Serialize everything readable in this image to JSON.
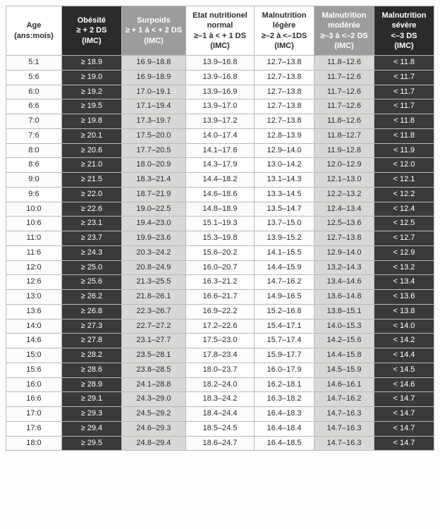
{
  "table": {
    "type": "table",
    "background_color": "#fdfdfb",
    "grid_color": "#b9b9b9",
    "font_family": "Arial",
    "header_fontsize_pt": 8,
    "body_fontsize_pt": 8,
    "columns": [
      {
        "key": "age",
        "label": "Age\n(ans:mois)",
        "header_bg": "#ffffff",
        "header_color": "#2b2b2b",
        "body_bg": "#ffffff",
        "body_color": "#2b2b2b",
        "width_pct": 13,
        "header_class": "hdr-age",
        "body_class": "col-age"
      },
      {
        "key": "ob",
        "label": "Obésité\n≥ + 2 DS\n(IMC)",
        "header_bg": "#2b2b2b",
        "header_color": "#ffffff",
        "body_bg": "#3a3a3a",
        "body_color": "#ffffff",
        "width_pct": 14,
        "header_class": "hdr-ob",
        "body_class": "col-ob"
      },
      {
        "key": "surp",
        "label": "Surpoids\n≥ + 1 à < + 2 DS\n(IMC)",
        "header_bg": "#9c9c9c",
        "header_color": "#ffffff",
        "body_bg": "#d8d8d6",
        "body_color": "#2b2b2b",
        "width_pct": 15,
        "header_class": "hdr-surp",
        "body_class": "col-surp"
      },
      {
        "key": "norm",
        "label": "Etat nutritionel\nnormal\n≥–1 à < + 1 DS\n(IMC)",
        "header_bg": "#ffffff",
        "header_color": "#2b2b2b",
        "body_bg": "#ffffff",
        "body_color": "#2b2b2b",
        "width_pct": 16,
        "header_class": "hdr-norm",
        "body_class": "col-norm"
      },
      {
        "key": "leg",
        "label": "Malnutrition\nlégère\n≥–2 à <–1DS\n(IMC)",
        "header_bg": "#ffffff",
        "header_color": "#2b2b2b",
        "body_bg": "#ffffff",
        "body_color": "#2b2b2b",
        "width_pct": 14,
        "header_class": "hdr-leg",
        "body_class": "col-leg"
      },
      {
        "key": "mod",
        "label": "Malnutrition\nmodérée\n≥–3 à <–2 DS\n(IMC)",
        "header_bg": "#9c9c9c",
        "header_color": "#ffffff",
        "body_bg": "#d8d8d6",
        "body_color": "#2b2b2b",
        "width_pct": 14,
        "header_class": "hdr-mod",
        "body_class": "col-mod"
      },
      {
        "key": "sev",
        "label": "Malnutrition\nsévère\n<–3 DS\n(IMC)",
        "header_bg": "#2b2b2b",
        "header_color": "#ffffff",
        "body_bg": "#3a3a3a",
        "body_color": "#ffffff",
        "width_pct": 14,
        "header_class": "hdr-sev",
        "body_class": "col-sev"
      }
    ],
    "rows": [
      [
        "5:1",
        "≥ 18.9",
        "16.9–18.8",
        "13.9–16.8",
        "12.7–13.8",
        "11.8–12.6",
        "< 11.8"
      ],
      [
        "5:6",
        "≥ 19.0",
        "16.9–18.9",
        "13.9–16.8",
        "12.7–13.8",
        "11.7–12.6",
        "< 11.7"
      ],
      [
        "6:0",
        "≥ 19.2",
        "17.0–19.1",
        "13.9–16.9",
        "12.7–13.8",
        "11.7–12.6",
        "< 11.7"
      ],
      [
        "6:6",
        "≥ 19.5",
        "17.1–19.4",
        "13.9–17.0",
        "12.7–13.8",
        "11.7–12.6",
        "< 11.7"
      ],
      [
        "7:0",
        "≥ 19.8",
        "17.3–19.7",
        "13.9–17.2",
        "12.7–13.8",
        "11.8–12.6",
        "< 11.8"
      ],
      [
        "7:6",
        "≥ 20.1",
        "17.5–20.0",
        "14.0–17.4",
        "12.8–13.9",
        "11.8–12.7",
        "< 11.8"
      ],
      [
        "8:0",
        "≥ 20.6",
        "17.7–20.5",
        "14.1–17.6",
        "12.9–14.0",
        "11.9–12.8",
        "< 11.9"
      ],
      [
        "8:6",
        "≥ 21.0",
        "18.0–20.9",
        "14.3–17.9",
        "13.0–14.2",
        "12.0–12.9",
        "< 12.0"
      ],
      [
        "9:0",
        "≥ 21.5",
        "18.3–21.4",
        "14.4–18.2",
        "13.1–14.3",
        "12.1–13.0",
        "< 12.1"
      ],
      [
        "9:6",
        "≥ 22.0",
        "18.7–21.9",
        "14.6–18.6",
        "13.3–14.5",
        "12.2–13.2",
        "< 12.2"
      ],
      [
        "10:0",
        "≥ 22.6",
        "19.0–22.5",
        "14.8–18.9",
        "13.5–14.7",
        "12.4–13.4",
        "< 12.4"
      ],
      [
        "10:6",
        "≥ 23.1",
        "19.4–23.0",
        "15.1–19.3",
        "13.7–15.0",
        "12.5–13.6",
        "< 12.5"
      ],
      [
        "11:0",
        "≥ 23.7",
        "19.9–23.6",
        "15.3–19.8",
        "13.9–15.2",
        "12.7–13.8",
        "< 12.7"
      ],
      [
        "11:6",
        "≥ 24.3",
        "20.3–24.2",
        "15.6–20.2",
        "14.1–15.5",
        "12.9–14.0",
        "< 12.9"
      ],
      [
        "12:0",
        "≥ 25.0",
        "20.8–24.9",
        "16.0–20.7",
        "14.4–15.9",
        "13.2–14.3",
        "< 13.2"
      ],
      [
        "12:6",
        "≥ 25.6",
        "21.3–25.5",
        "16.3–21.2",
        "14.7–16.2",
        "13.4–14.6",
        "< 13.4"
      ],
      [
        "13:0",
        "≥ 26.2",
        "21.8–26.1",
        "16.6–21.7",
        "14.9–16.5",
        "13.6–14.8",
        "< 13.6"
      ],
      [
        "13:6",
        "≥ 26.8",
        "22.3–26.7",
        "16.9–22.2",
        "15.2–16.8",
        "13.8–15.1",
        "< 13.8"
      ],
      [
        "14:0",
        "≥ 27.3",
        "22.7–27.2",
        "17.2–22.6",
        "15.4–17.1",
        "14.0–15.3",
        "< 14.0"
      ],
      [
        "14:6",
        "≥ 27.8",
        "23.1–27.7",
        "17.5–23.0",
        "15.7–17.4",
        "14.2–15.6",
        "< 14.2"
      ],
      [
        "15:0",
        "≥ 28.2",
        "23.5–28.1",
        "17.8–23.4",
        "15.9–17.7",
        "14.4–15.8",
        "< 14.4"
      ],
      [
        "15:6",
        "≥ 28.6",
        "23.8–28.5",
        "18.0–23.7",
        "16.0–17.9",
        "14.5–15.9",
        "< 14.5"
      ],
      [
        "16:0",
        "≥ 28.9",
        "24.1–28.8",
        "18.2–24.0",
        "16.2–18.1",
        "14.6–16.1",
        "< 14.6"
      ],
      [
        "16:6",
        "≥ 29.1",
        "24.3–29.0",
        "18.3–24.2",
        "16.3–18.2",
        "14.7–16.2",
        "< 14.7"
      ],
      [
        "17:0",
        "≥ 29.3",
        "24.5–29.2",
        "18.4–24.4",
        "16.4–18.3",
        "14.7–16.3",
        "< 14.7"
      ],
      [
        "17:6",
        "≥ 29.4",
        "24.6–29.3",
        "18.5–24.5",
        "16.4–18.4",
        "14.7–16.3",
        "< 14.7"
      ],
      [
        "18:0",
        "≥ 29.5",
        "24.8–29.4",
        "18.6–24.7",
        "16.4–18.5",
        "14.7–16.3",
        "< 14.7"
      ]
    ]
  }
}
